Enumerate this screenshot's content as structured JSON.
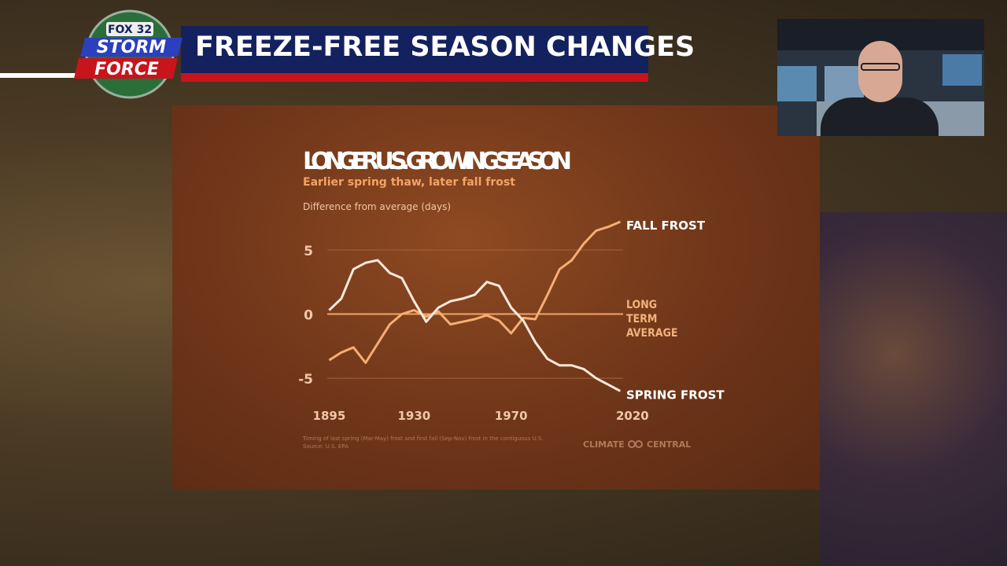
{
  "broadcast": {
    "logo_top": "FOX 32",
    "logo_middle": "STORM",
    "logo_bottom": "FORCE",
    "headline": "FREEZE-FREE SEASON CHANGES"
  },
  "chart_data": {
    "type": "line",
    "title": "LONGER U.S. GROWING SEASON",
    "subtitle": "Earlier spring thaw, later fall frost",
    "y_label": "Difference from average (days)",
    "baseline_label": "LONG TERM AVERAGE",
    "x": [
      1895,
      1900,
      1905,
      1910,
      1915,
      1920,
      1925,
      1930,
      1935,
      1940,
      1945,
      1950,
      1955,
      1960,
      1965,
      1970,
      1975,
      1980,
      1985,
      1990,
      1995,
      2000,
      2005,
      2010,
      2015
    ],
    "series": [
      {
        "name": "FALL FROST",
        "color": "#f6ae72",
        "values": [
          -3.6,
          -3.0,
          -2.6,
          -3.8,
          -2.3,
          -0.8,
          0,
          0.3,
          -0.2,
          0.2,
          -0.8,
          -0.6,
          -0.4,
          -0.1,
          -0.5,
          -1.5,
          -0.3,
          -0.4,
          1.5,
          3.5,
          4.2,
          5.5,
          6.5,
          6.8,
          7.2
        ]
      },
      {
        "name": "SPRING FROST",
        "color": "#fbe9dc",
        "values": [
          0.3,
          1.2,
          3.5,
          4.0,
          4.2,
          3.2,
          2.8,
          1.0,
          -0.6,
          0.5,
          1.0,
          1.2,
          1.5,
          2.5,
          2.2,
          0.5,
          -0.5,
          -2.2,
          -3.5,
          -4.0,
          -4.0,
          -4.3,
          -5.0,
          -5.5,
          -6.0
        ]
      }
    ],
    "xlim": [
      1890,
      2022
    ],
    "xticks": [
      1895,
      1930,
      1970,
      2020
    ],
    "ylim": [
      -8,
      8
    ],
    "yticks": [
      -5,
      0,
      5
    ],
    "grid": true,
    "footnote": "Timing of last spring (Mar-May) frost and first fall (Sep-Nov) frost in the contiguous U.S.",
    "source": "Source: U.S. EPA",
    "credit_left": "CLIMATE",
    "credit_right": "CENTRAL"
  }
}
